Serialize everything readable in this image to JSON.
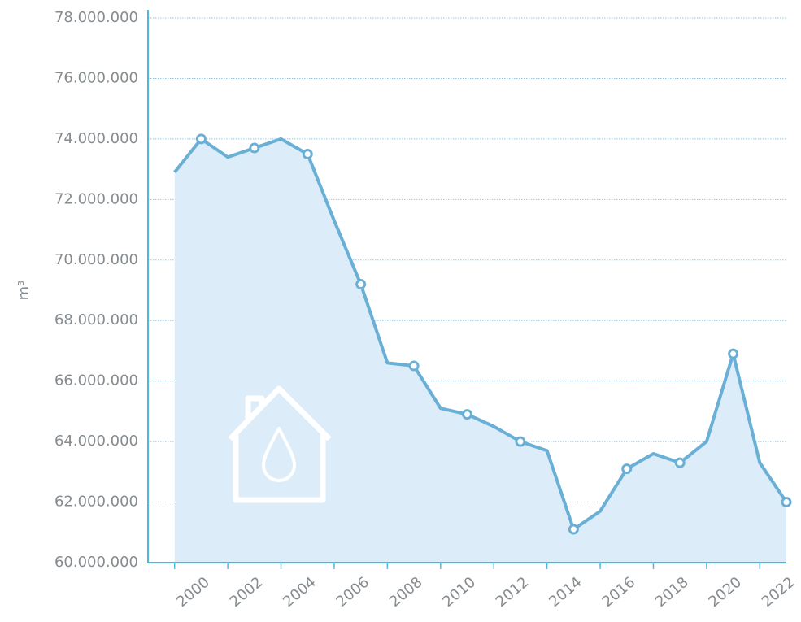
{
  "chart_data": {
    "type": "line",
    "y_label": "m³",
    "x": [
      1999,
      2000,
      2001,
      2002,
      2003,
      2004,
      2005,
      2006,
      2007,
      2008,
      2009,
      2010,
      2011,
      2012,
      2013,
      2014,
      2015,
      2016,
      2017,
      2018,
      2019,
      2020,
      2021,
      2022
    ],
    "series": [
      {
        "color": "#6ab0d6",
        "fill": "#dcedf9",
        "marker_every": 2,
        "values": [
          72.9,
          74.0,
          73.4,
          73.7,
          74.0,
          73.5,
          71.3,
          69.2,
          66.6,
          66.5,
          65.1,
          64.9,
          64.5,
          64.0,
          63.7,
          61.1,
          61.7,
          63.1,
          63.6,
          63.3,
          64.0,
          66.9,
          63.3,
          62.0
        ]
      }
    ],
    "xlim": [
      1998,
      2022
    ],
    "xticks": [
      2000,
      2002,
      2004,
      2006,
      2008,
      2010,
      2012,
      2014,
      2016,
      2018,
      2020,
      2022
    ],
    "x_minor_ticks": [
      1999,
      2001,
      2003,
      2005,
      2007,
      2009,
      2011,
      2013,
      2015,
      2017,
      2019,
      2021
    ],
    "ylim": [
      60,
      78
    ],
    "yticks": [
      {
        "value": 60,
        "label": "60.000.000"
      },
      {
        "value": 62,
        "label": "62.000.000"
      },
      {
        "value": 64,
        "label": "64.000.000"
      },
      {
        "value": 66,
        "label": "66.000.000"
      },
      {
        "value": 68,
        "label": "68.000.000"
      },
      {
        "value": 70,
        "label": "70.000.000"
      },
      {
        "value": 72,
        "label": "72.000.000"
      },
      {
        "value": 74,
        "label": "74.000.000"
      },
      {
        "value": 76,
        "label": "76.000.000"
      },
      {
        "value": 78,
        "label": "78.000.000"
      }
    ],
    "grid": true
  }
}
